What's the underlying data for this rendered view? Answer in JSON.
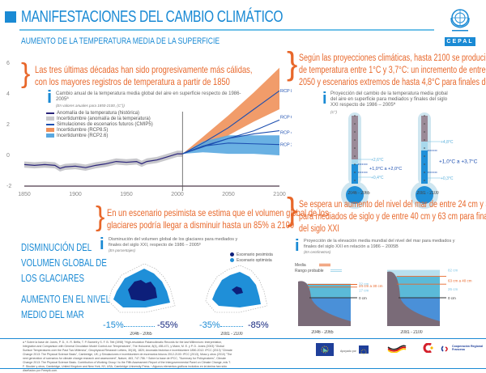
{
  "header": {
    "title": "MANIFESTACIONES DEL CAMBIO CLIMÁTICO",
    "subtitle": "AUMENTO DE LA TEMPERATURA MEDIA DE LA SUPERFICIE",
    "logo_un": "Naciones Unidas",
    "logo_cepal": "CEPAL"
  },
  "callouts": {
    "temp_history": [
      "Las tres últimas décadas han sido progresivamente más cálidas,",
      "con los mayores registros de temperatura a partir de 1850"
    ],
    "temp_projection": [
      "Según las proyecciones climáticas, hasta 2100 se producirían aumentos",
      "de temperatura entre 1°C y 3,7°C: un incremento de entre 1°C y 2°C para",
      "2050 y escenarios extremos de hasta 4,8°C para finales de siglo"
    ],
    "glaciers": [
      "En un escenario pesimista se estima que el volumen global de los",
      "glaciares podría llegar a disminuir hasta un 85% a 2100"
    ],
    "sea_level": [
      "Se espera un aumento del nivel del mar de entre 24 cm y 30 cm",
      "para mediados de siglo y de entre 40 cm y 63 cm para finales",
      "del siglo XXI"
    ]
  },
  "chart_data": [
    {
      "type": "line",
      "title": "Cambio anual de la temperatura media global del aire en superficie respecto de 1986-2005ª",
      "note": "(En valores anuales para 1850-2100, (C°))",
      "xlabel": "",
      "ylabel": "",
      "xlim": [
        1850,
        2100
      ],
      "ylim": [
        -2,
        6
      ],
      "x_ticks": [
        "1850",
        "1900",
        "1950",
        "2000",
        "2050",
        "2100"
      ],
      "y_ticks": [
        "-2",
        "0",
        "2",
        "4",
        "6"
      ],
      "vertical_marker": 2005,
      "legend": [
        {
          "label": "Anomalía de la temperatura (histórica)",
          "color": "#2a237a",
          "kind": "line"
        },
        {
          "label": "Incertidumbre (anomalía de la temperatura)",
          "color": "#c8c8cc",
          "kind": "band"
        },
        {
          "label": "Simulaciones de escenarios futuros (CMIP5)",
          "color": "#1d4fb0",
          "kind": "line"
        },
        {
          "label": "Incertidumbre (RCP8.5)",
          "color": "#f0915a",
          "kind": "band"
        },
        {
          "label": "Incertidumbre (RCP2.6)",
          "color": "#5aa8e0",
          "kind": "band"
        }
      ],
      "historical": {
        "x": [
          1850,
          1860,
          1870,
          1880,
          1885,
          1890,
          1900,
          1910,
          1920,
          1930,
          1940,
          1950,
          1960,
          1965,
          1970,
          1980,
          1990,
          2000,
          2005
        ],
        "y": [
          -0.6,
          -0.65,
          -0.6,
          -0.65,
          -0.85,
          -0.75,
          -0.7,
          -0.8,
          -0.65,
          -0.55,
          -0.4,
          -0.45,
          -0.4,
          -0.55,
          -0.4,
          -0.3,
          -0.1,
          0.1,
          0.1
        ]
      },
      "series": [
        {
          "name": "RCP 8,5",
          "x": [
            2005,
            2025,
            2050,
            2075,
            2100
          ],
          "y": [
            0.1,
            0.8,
            1.8,
            3.0,
            4.2
          ]
        },
        {
          "name": "RCP 6,0",
          "x": [
            2005,
            2025,
            2050,
            2075,
            2100
          ],
          "y": [
            0.1,
            0.55,
            1.1,
            1.6,
            2.3
          ]
        },
        {
          "name": "RCP 4,5",
          "x": [
            2005,
            2025,
            2050,
            2075,
            2100
          ],
          "y": [
            0.1,
            0.6,
            1.1,
            1.4,
            1.6
          ]
        },
        {
          "name": "RCP 2,6",
          "x": [
            2005,
            2025,
            2050,
            2075,
            2100
          ],
          "y": [
            0.1,
            0.6,
            0.8,
            0.75,
            0.7
          ]
        }
      ],
      "bands": [
        {
          "name": "Incertidumbre (RCP8.5)",
          "x": [
            2005,
            2025,
            2050,
            2075,
            2100
          ],
          "low": [
            0.1,
            0.5,
            1.3,
            2.2,
            3.0
          ],
          "high": [
            0.1,
            1.2,
            2.6,
            4.1,
            5.7
          ]
        },
        {
          "name": "Incertidumbre (RCP2.6)",
          "x": [
            2005,
            2025,
            2050,
            2075,
            2100
          ],
          "low": [
            0.1,
            0.2,
            0.1,
            0.1,
            0.0
          ],
          "high": [
            0.1,
            0.9,
            1.3,
            1.3,
            1.3
          ]
        }
      ]
    },
    {
      "type": "bar",
      "title": "Proyección del cambio de la temperatura media global del aire en superficie para mediados y finales del siglo XXI respecto de 1986 – 2005ª",
      "unit": "(C°)",
      "categories": [
        "2046 - 2065",
        "2081 - 2100"
      ],
      "series": [
        {
          "name": "mínimo",
          "values": [
            0.4,
            0.3
          ]
        },
        {
          "name": "rango probable bajo",
          "values": [
            1.0,
            1.0
          ]
        },
        {
          "name": "rango probable alto",
          "values": [
            2.0,
            3.7
          ]
        },
        {
          "name": "máximo",
          "values": [
            2.6,
            4.8
          ]
        }
      ],
      "labels": [
        [
          "+2,6°C",
          "+1,0°C a +2,0°C",
          "+0,4°C"
        ],
        [
          "+4,8°C",
          "+1,0°C a +3,7°C",
          "+0,3°C"
        ]
      ]
    },
    {
      "type": "area",
      "title": "Disminución del volumen global de los glaciares para mediados y finales del siglo XXI, respecto de 1986 – 2005ᵇ",
      "unit": "(En porcentajes)",
      "categories": [
        "2046 - 2065",
        "2081 - 2100"
      ],
      "series": [
        {
          "name": "Escenario pesimista",
          "color": "#0d1f7a",
          "values": [
            -55,
            -85
          ]
        },
        {
          "name": "Escenario optimista",
          "color": "#1f8fd8",
          "values": [
            -15,
            -35
          ]
        }
      ],
      "labels": [
        [
          "-15%",
          "-55%"
        ],
        [
          "-35%",
          "-85%"
        ]
      ]
    },
    {
      "type": "bar",
      "title": "Proyección de la elevación media mundial del nivel del mar para mediados y finales del siglo XXI en relación a 1986 – 2005B",
      "unit": "(En centímetros)",
      "legend": [
        {
          "label": "Media",
          "color": "#e8672a"
        },
        {
          "label": "Rango probable",
          "color": "#a8d8ec"
        }
      ],
      "categories": [
        "2046 - 2065",
        "2081 - 2100"
      ],
      "series": [
        {
          "name": "mínimo",
          "values": [
            17,
            26
          ]
        },
        {
          "name": "media baja",
          "values": [
            24,
            40
          ]
        },
        {
          "name": "media alta",
          "values": [
            30,
            63
          ]
        },
        {
          "name": "máximo",
          "values": [
            32,
            82
          ]
        }
      ],
      "labels": [
        [
          "32 cm",
          "24 cm a 30 cm",
          "17 cm",
          "0 cm"
        ],
        [
          "82 cm",
          "63 cm a 40 cm",
          "26 cm",
          "0 cm"
        ]
      ]
    }
  ],
  "sections": {
    "glaciers_heading": [
      "DISMINUCIÓN DEL",
      "VOLUMEN GLOBAL DE",
      "LOS GLACIARES"
    ],
    "sea_heading": [
      "AUMENTO EN EL NIVEL",
      "MEDIO DEL MAR"
    ]
  },
  "footer": {
    "text": "a ª Sobre la base de: Jones, P. D., K. R. Briffa, T. P. Barnett y S. F. B. Tett (1998) \"High-resolution Palaeoclimatic Records for the last Millennium: Interpretation, Integration and Comparison with General Circulation Model Control-run Temperatures\", The Holocene, 8(4), 455-471, y Mann, M. E. y P. D. Jones (2003) \"Global Surface Temperatures over the Past Two Millennia\", Geophysical Research Letters, 30(15), 1820; Anomalía histórica e incertidumbre 1850-2012: IPCC (2013) \"Climate Change 2013: The Physical Science Basis\", Cambridge, UK; y Simulaciones e incertidumbre de escenarios futuros 2012-2100: IPCC (2013), Moss y otros (2010) \"The next generation of scenarios for climate change research and assessment\", Nature, 463, 747-756. ᵇ Sobre la base de IPCC, \"Summary for Policymakers\", Climate Change 2013: The Physical Science Basis. Contribution of Working Group I to the Fifth Assessment Report of the Intergovernmental Panel on Climate Change, eds T. F. Stocker y otros, Cambridge, United Kingdom and New York, NY, USA, Cambridge University Press. ᶜ Algunos elementos gráficos incluidos en la lámina han sido diseñados por Freepik.com.",
    "supported_by": "Apoyado por",
    "partners": [
      "Euroclima",
      "Unión Europea",
      "Cooperación Alemana",
      "Cooperación Española",
      "Cooperación Regional Francesa"
    ]
  }
}
